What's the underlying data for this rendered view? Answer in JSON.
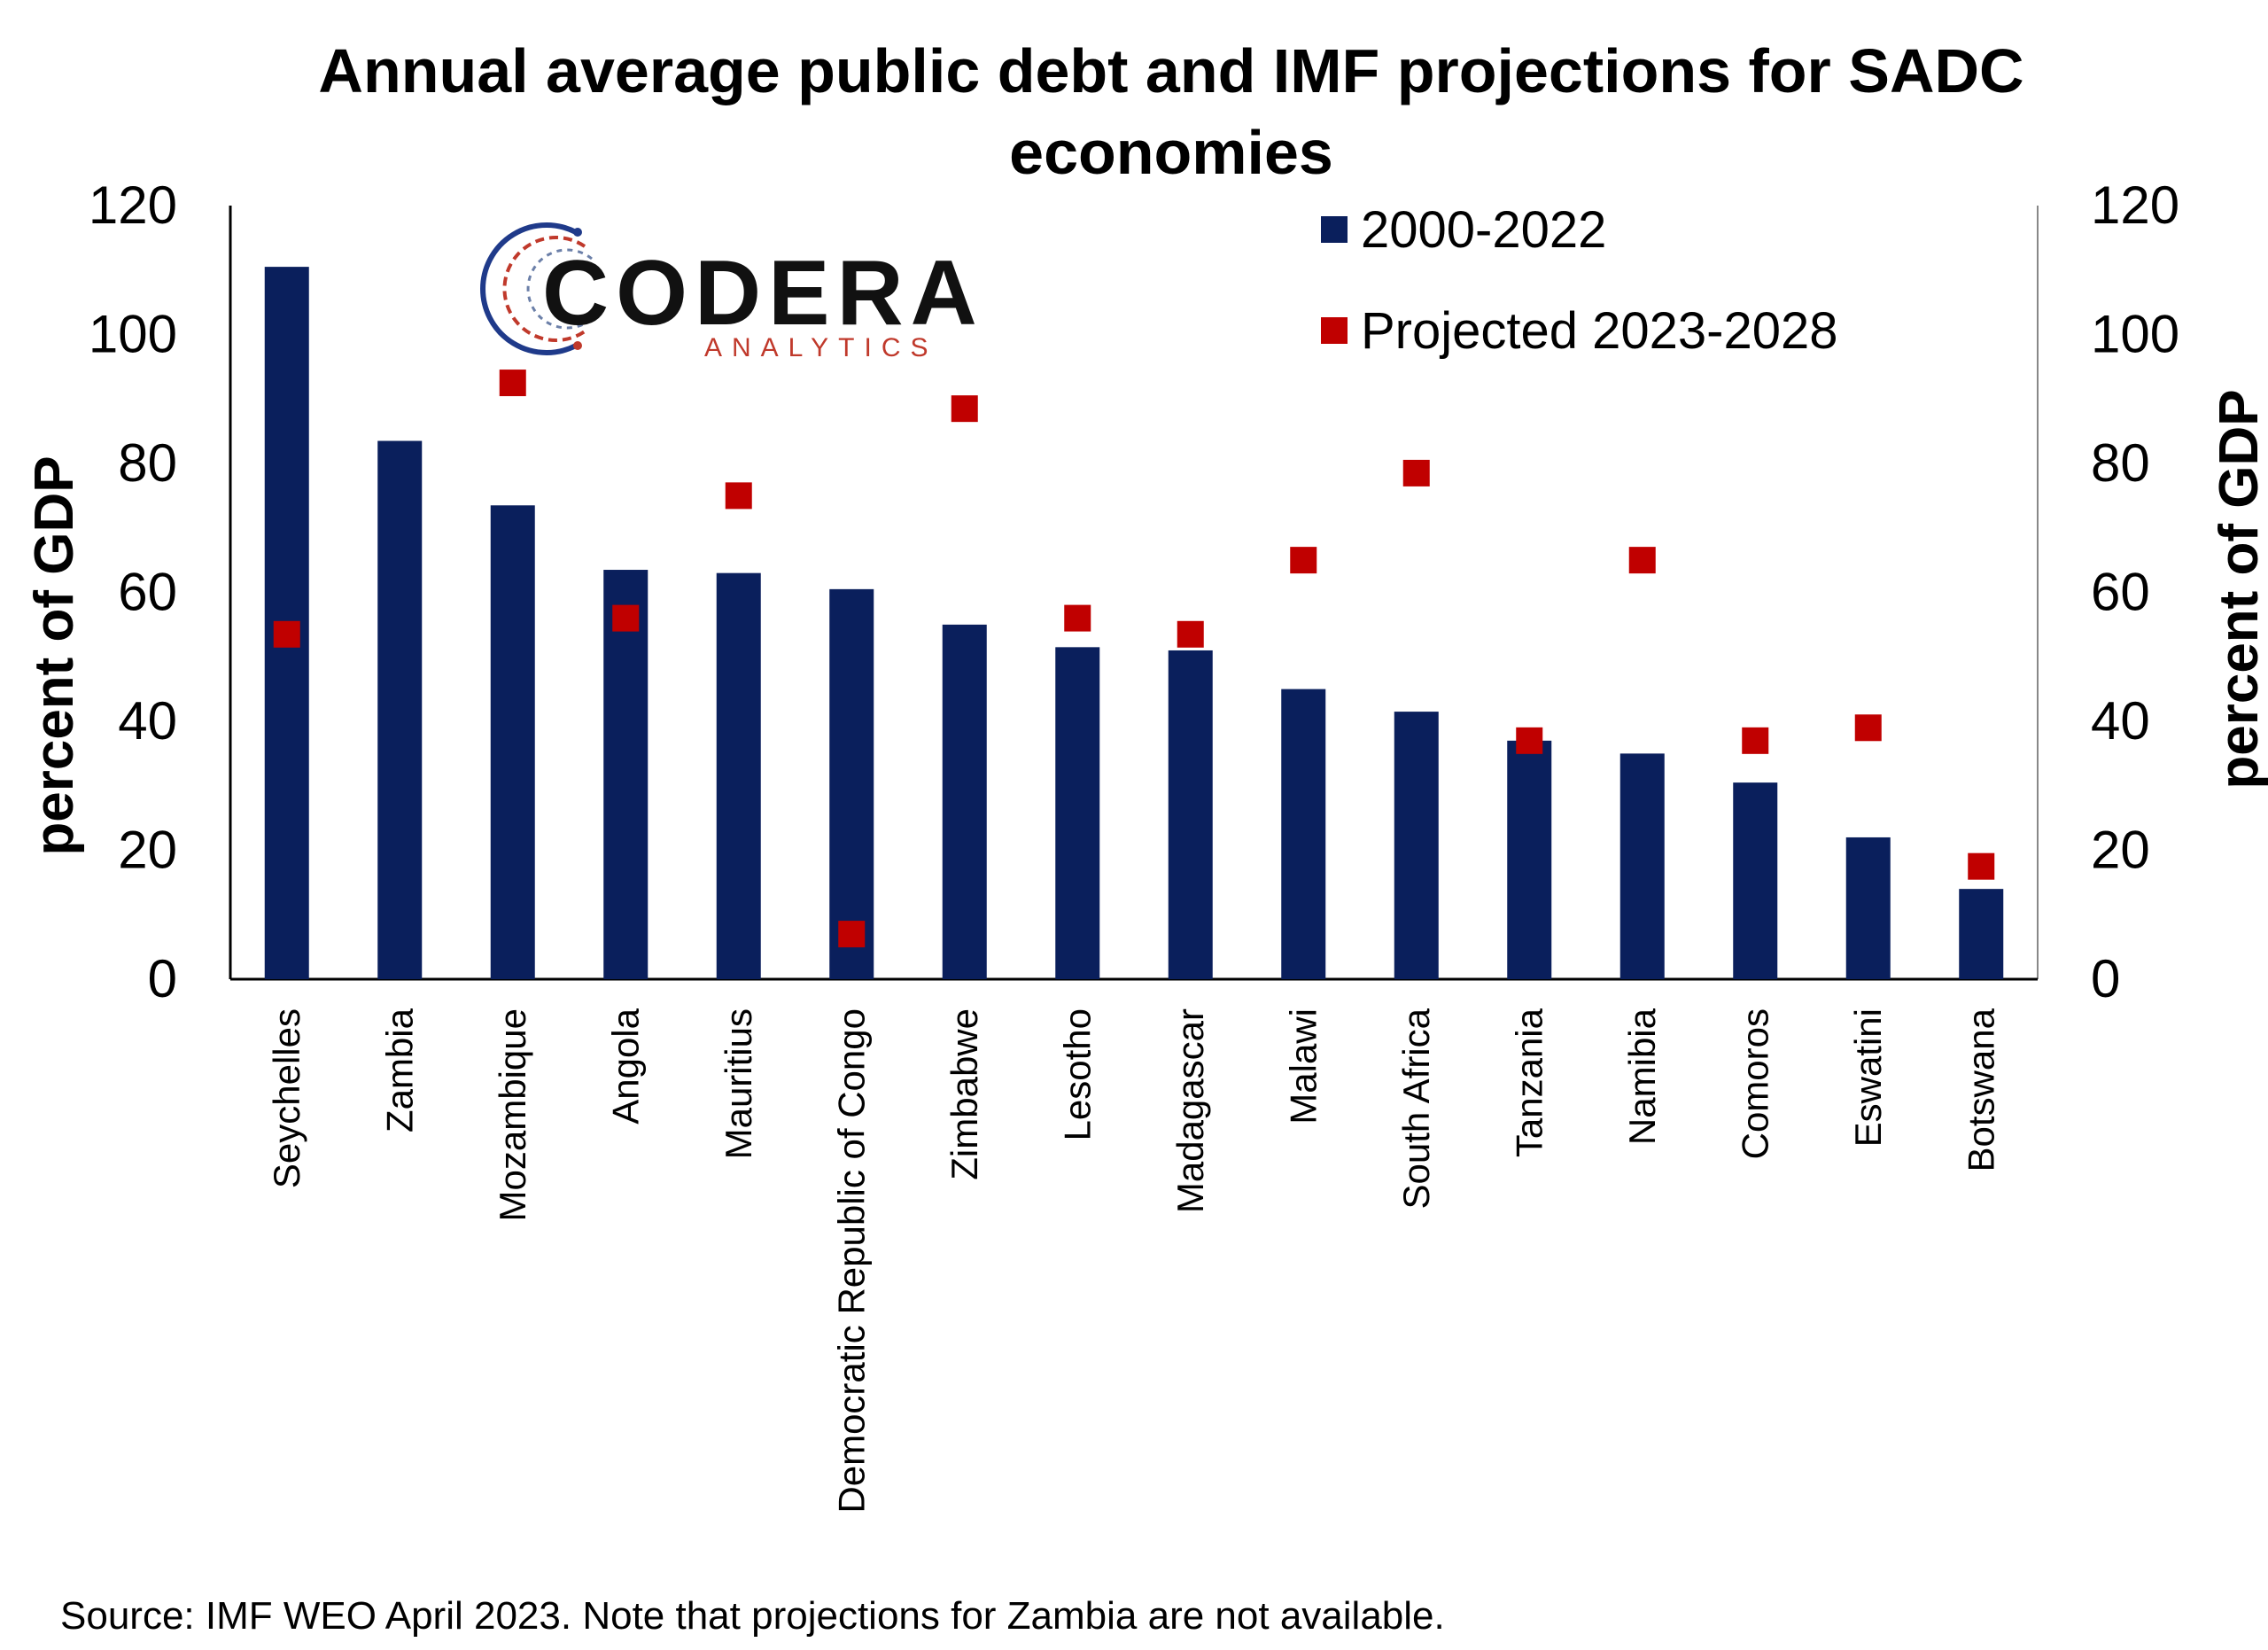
{
  "chart_data": {
    "type": "bar",
    "title_line1": "Annual average public debt and IMF projections for SADC",
    "title_line2": "economies",
    "ylabel_left": "percent of GDP",
    "ylabel_right": "percent of GDP",
    "ylim": [
      0,
      120
    ],
    "yticks": [
      "0",
      "20",
      "40",
      "60",
      "80",
      "100",
      "120"
    ],
    "categories": [
      "Seychelles",
      "Zambia",
      "Mozambique",
      "Angola",
      "Mauritius",
      "Democratic Republic of Congo",
      "Zimbabwe",
      "Lesotho",
      "Madagascar",
      "Malawi",
      "South Africa",
      "Tanzania",
      "Namibia",
      "Comoros",
      "Eswatini",
      "Botswana"
    ],
    "series": [
      {
        "name": "2000-2022",
        "type": "bar",
        "color": "#0a1f5c",
        "values": [
          110.5,
          83.5,
          73.5,
          63.5,
          63,
          60.5,
          55,
          51.5,
          51,
          45,
          41.5,
          37,
          35,
          30.5,
          22,
          14
        ]
      },
      {
        "name": "Projected 2023-2028",
        "type": "marker",
        "color": "#c00000",
        "values": [
          53.5,
          null,
          92.5,
          56,
          75,
          7,
          88.5,
          56,
          53.5,
          65,
          78.5,
          37,
          65,
          37,
          39,
          17.5
        ]
      }
    ],
    "legend_position": "top-right",
    "grid": false,
    "source": "Source: IMF WEO April 2023. Note that projections for Zambia are not available."
  },
  "logo": {
    "name": "CODERA",
    "tagline": "ANALYTICS",
    "icon": "codera-circuit-logo-icon",
    "accent_blue": "#1f3a8a",
    "accent_red": "#c0392b"
  }
}
